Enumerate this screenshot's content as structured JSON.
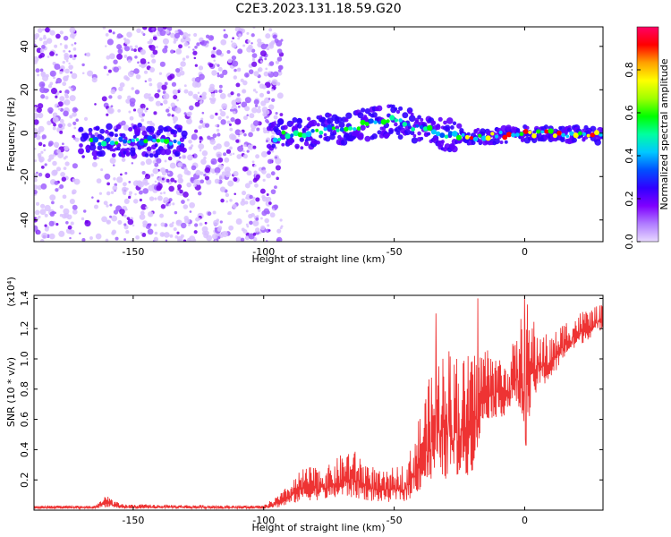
{
  "title": "C2E3.2023.131.18.59.G20",
  "chart_data": [
    {
      "type": "heatmap",
      "xlabel": "Height of straight line (km)",
      "ylabel": "Frequency (Hz)",
      "xlim": [
        -188,
        30
      ],
      "ylim": [
        -50,
        49
      ],
      "xticks": [
        -150,
        -100,
        -50,
        0
      ],
      "yticks": [
        -40,
        -20,
        0,
        20,
        40
      ],
      "colorbar": {
        "label": "Normalized spectral amplitude",
        "range": [
          0,
          1
        ],
        "ticks": [
          0.0,
          0.2,
          0.4,
          0.6,
          0.8
        ],
        "tick_labels": [
          "0.0",
          "0.2",
          "0.4",
          "0.6",
          "0.8"
        ],
        "colormap": [
          "#e8d9ff",
          "#b07cff",
          "#7f00ff",
          "#3000ff",
          "#0050ff",
          "#00c8ff",
          "#00ffa0",
          "#00ff00",
          "#a0ff00",
          "#ffff00",
          "#ffa000",
          "#ff0000",
          "#ff0066"
        ]
      },
      "ridge": {
        "description_points": [
          {
            "x": -170,
            "y": -5
          },
          {
            "x": -150,
            "y": -3
          },
          {
            "x": -132,
            "y": -4
          },
          {
            "x": -97,
            "y": -2
          },
          {
            "x": -80,
            "y": 1
          },
          {
            "x": -60,
            "y": 4
          },
          {
            "x": -50,
            "y": 6
          },
          {
            "x": -40,
            "y": 2
          },
          {
            "x": -30,
            "y": -1
          },
          {
            "x": -20,
            "y": -2
          },
          {
            "x": 0,
            "y": 0
          },
          {
            "x": 30,
            "y": -1
          }
        ]
      }
    },
    {
      "type": "line",
      "xlabel": "Height of straight line (km)",
      "ylabel": "SNR (10 * v/v)",
      "scale_note": "(x10⁴)",
      "xlim": [
        -188,
        30
      ],
      "ylim": [
        0,
        1.42
      ],
      "xticks": [
        -150,
        -100,
        -50,
        0
      ],
      "yticks": [
        0.2,
        0.4,
        0.6,
        0.8,
        1.0,
        1.2,
        1.4
      ],
      "ytick_labels": [
        "0.2",
        "0.4",
        "0.6",
        "0.8",
        "1.0",
        "1.2",
        "1.4"
      ],
      "color": "#ee3333",
      "envelope": [
        {
          "x": -188,
          "low": 0.01,
          "high": 0.03
        },
        {
          "x": -165,
          "low": 0.01,
          "high": 0.03
        },
        {
          "x": -160,
          "low": 0.02,
          "high": 0.1
        },
        {
          "x": -155,
          "low": 0.01,
          "high": 0.04
        },
        {
          "x": -100,
          "low": 0.01,
          "high": 0.03
        },
        {
          "x": -93,
          "low": 0.02,
          "high": 0.12
        },
        {
          "x": -85,
          "low": 0.06,
          "high": 0.28
        },
        {
          "x": -75,
          "low": 0.07,
          "high": 0.3
        },
        {
          "x": -67,
          "low": 0.08,
          "high": 0.42
        },
        {
          "x": -55,
          "low": 0.05,
          "high": 0.25
        },
        {
          "x": -45,
          "low": 0.06,
          "high": 0.32
        },
        {
          "x": -38,
          "low": 0.15,
          "high": 0.8
        },
        {
          "x": -32,
          "low": 0.2,
          "high": 1.1
        },
        {
          "x": -25,
          "low": 0.2,
          "high": 1.0
        },
        {
          "x": -20,
          "low": 0.25,
          "high": 1.05
        },
        {
          "x": -15,
          "low": 0.6,
          "high": 1.1
        },
        {
          "x": -8,
          "low": 0.62,
          "high": 1.0
        },
        {
          "x": -3,
          "low": 0.7,
          "high": 1.15
        },
        {
          "x": 0,
          "low": 0.45,
          "high": 1.42
        },
        {
          "x": 5,
          "low": 0.8,
          "high": 1.2
        },
        {
          "x": 10,
          "low": 0.85,
          "high": 1.15
        },
        {
          "x": 15,
          "low": 1.0,
          "high": 1.25
        },
        {
          "x": 22,
          "low": 1.1,
          "high": 1.32
        },
        {
          "x": 30,
          "low": 1.2,
          "high": 1.36
        }
      ],
      "spikes": [
        {
          "x": -34,
          "y": 1.3
        },
        {
          "x": -29,
          "y": 1.05
        },
        {
          "x": -26,
          "y": 1.0
        },
        {
          "x": -18,
          "y": 1.4
        },
        {
          "x": -13,
          "y": 1.0
        },
        {
          "x": 0,
          "y": 1.42
        },
        {
          "x": 0.5,
          "y": 0.43
        }
      ]
    }
  ]
}
